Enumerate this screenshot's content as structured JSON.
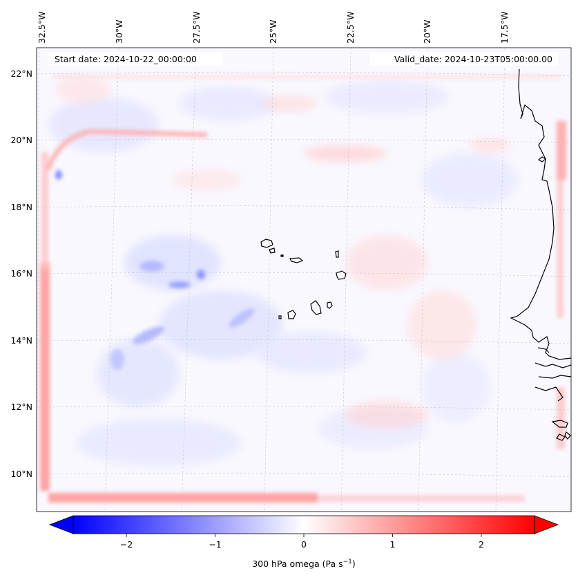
{
  "header": {
    "start_date": "Start date: 2024-10-22_00:00:00",
    "valid_date": "Valid_date: 2024-10-23T05:00:00.00"
  },
  "longitude_labels": [
    "32.5°W",
    "30°W",
    "27.5°W",
    "25°W",
    "22.5°W",
    "20°W",
    "17.5°W"
  ],
  "latitude_labels": [
    "22°N",
    "20°N",
    "18°N",
    "16°N",
    "14°N",
    "12°N",
    "10°N"
  ],
  "colorbar": {
    "title": "300 hPa omega (Pa s",
    "title_exp": "−1",
    "title_close": ")",
    "ticks": [
      "−2",
      "−1",
      "0",
      "1",
      "2"
    ],
    "tick_values": [
      -2,
      -1,
      0,
      1,
      2
    ],
    "vmin": -2.6,
    "vmax": 2.6,
    "cmap": "bwr",
    "colors": {
      "negative": "#0000ff",
      "zero": "#ffffff",
      "positive": "#ff0000"
    }
  }
}
